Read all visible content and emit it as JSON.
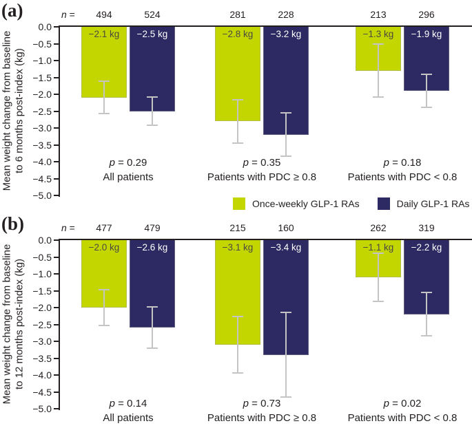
{
  "figure": {
    "n_prefix": "n =",
    "legend": [
      {
        "label": "Once-weekly GLP-1 RAs",
        "color": "#c4d600"
      },
      {
        "label": "Daily GLP-1 RAs",
        "color": "#2d2963"
      }
    ]
  },
  "colors": {
    "once_weekly": "#c4d600",
    "daily": "#2d2963",
    "error_bar": "#c4c4c4",
    "axis": "#231f20",
    "label_on_yellow": "#4a4a41",
    "label_on_navy": "#ffffff"
  },
  "chart_data": [
    {
      "type": "bar",
      "panel": "(a)",
      "ylabel_lines": [
        "Mean weight change from baseline",
        "to 6 months post-index (kg)"
      ],
      "ylim": [
        0.0,
        -5.0
      ],
      "yticks": [
        "0.0",
        "−0.5",
        "−1.0",
        "−1.5",
        "−2.0",
        "−2.5",
        "−3.0",
        "−3.5",
        "−4.0",
        "−4.5",
        "−5.0"
      ],
      "series_names": [
        "Once-weekly GLP-1 RAs",
        "Daily GLP-1 RAs"
      ],
      "legend_position": "bottom",
      "grid": false,
      "groups": [
        {
          "label": "All patients",
          "p_label": "p = 0.29",
          "bars": [
            {
              "series": "Once-weekly GLP-1 RAs",
              "n": "494",
              "value": -2.1,
              "bar_label": "−2.1 kg",
              "err": 0.46
            },
            {
              "series": "Daily GLP-1 RAs",
              "n": "524",
              "value": -2.5,
              "bar_label": "−2.5 kg",
              "err": 0.39
            }
          ]
        },
        {
          "label": "Patients with PDC ≥ 0.8",
          "p_label": "p = 0.35",
          "bars": [
            {
              "series": "Once-weekly GLP-1 RAs",
              "n": "281",
              "value": -2.8,
              "bar_label": "−2.8 kg",
              "err": 0.62
            },
            {
              "series": "Daily GLP-1 RAs",
              "n": "228",
              "value": -3.2,
              "bar_label": "−3.2 kg",
              "err": 0.62
            }
          ]
        },
        {
          "label": "Patients with PDC < 0.8",
          "p_label": "p = 0.18",
          "bars": [
            {
              "series": "Once-weekly GLP-1 RAs",
              "n": "213",
              "value": -1.3,
              "bar_label": "−1.3 kg",
              "err": 0.76
            },
            {
              "series": "Daily GLP-1 RAs",
              "n": "296",
              "value": -1.9,
              "bar_label": "−1.9 kg",
              "err": 0.47
            }
          ]
        }
      ]
    },
    {
      "type": "bar",
      "panel": "(b)",
      "ylabel_lines": [
        "Mean weight change from baseline",
        "to 12 months post-index (kg)"
      ],
      "ylim": [
        0.0,
        -5.0
      ],
      "yticks": [
        "0.0",
        "−0.5",
        "−1.0",
        "−1.5",
        "−2.0",
        "−2.5",
        "−3.0",
        "−3.5",
        "−4.0",
        "−4.5",
        "−5.0"
      ],
      "series_names": [
        "Once-weekly GLP-1 RAs",
        "Daily GLP-1 RAs"
      ],
      "legend_position": "none",
      "grid": false,
      "groups": [
        {
          "label": "All patients",
          "p_label": "p = 0.14",
          "bars": [
            {
              "series": "Once-weekly GLP-1 RAs",
              "n": "477",
              "value": -2.0,
              "bar_label": "−2.0 kg",
              "err": 0.51
            },
            {
              "series": "Daily GLP-1 RAs",
              "n": "479",
              "value": -2.6,
              "bar_label": "−2.6 kg",
              "err": 0.59
            }
          ]
        },
        {
          "label": "Patients with PDC ≥ 0.8",
          "p_label": "p = 0.73",
          "bars": [
            {
              "series": "Once-weekly GLP-1 RAs",
              "n": "215",
              "value": -3.1,
              "bar_label": "−3.1 kg",
              "err": 0.81
            },
            {
              "series": "Daily GLP-1 RAs",
              "n": "160",
              "value": -3.4,
              "bar_label": "−3.4 kg",
              "err": 1.24
            }
          ]
        },
        {
          "label": "Patients with PDC < 0.8",
          "p_label": "p = 0.02",
          "bars": [
            {
              "series": "Once-weekly GLP-1 RAs",
              "n": "262",
              "value": -1.1,
              "bar_label": "−1.1 kg",
              "err": 0.7
            },
            {
              "series": "Daily GLP-1 RAs",
              "n": "319",
              "value": -2.2,
              "bar_label": "−2.2 kg",
              "err": 0.62
            }
          ]
        }
      ]
    }
  ]
}
